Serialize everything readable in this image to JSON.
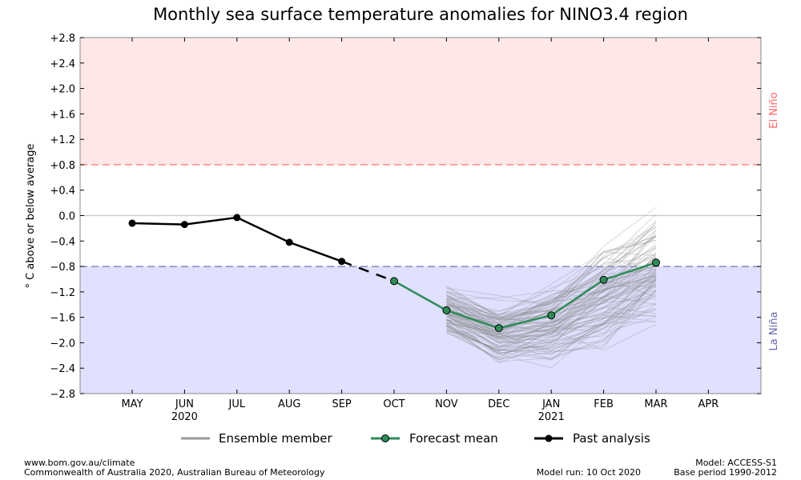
{
  "chart_data": {
    "type": "line",
    "title": "Monthly sea surface temperature anomalies for NINO3.4 region",
    "ylabel": "° C above or below average",
    "xlabel": "",
    "ylim": [
      -2.8,
      2.8
    ],
    "yticks": [
      2.8,
      2.4,
      2.0,
      1.6,
      1.2,
      0.8,
      0.4,
      0.0,
      -0.4,
      -0.8,
      -1.2,
      -1.6,
      -2.0,
      -2.4,
      -2.8
    ],
    "ytick_labels": [
      "+2.8",
      "+2.4",
      "+2.0",
      "+1.6",
      "+1.2",
      "+0.8",
      "+0.4",
      "0.0",
      "−0.4",
      "−0.8",
      "−1.2",
      "−1.6",
      "−2.0",
      "−2.4",
      "−2.8"
    ],
    "categories": [
      "MAY",
      "JUN",
      "JUL",
      "AUG",
      "SEP",
      "OCT",
      "NOV",
      "DEC",
      "JAN",
      "FEB",
      "MAR",
      "APR"
    ],
    "year_labels": [
      {
        "month": "JUN",
        "label": "2020"
      },
      {
        "month": "JAN",
        "label": "2021"
      }
    ],
    "thresholds": {
      "el_nino": 0.8,
      "la_nina": -0.8,
      "el_nino_label": "El Niño",
      "la_nina_label": "La Niña",
      "el_nino_color": "#ff6666",
      "la_nina_color": "#6666aa",
      "el_nino_fill": "#ffe7e7",
      "la_nina_fill": "#e0e0ff"
    },
    "series": [
      {
        "name": "Past analysis",
        "color": "#000000",
        "x": [
          "MAY",
          "JUN",
          "JUL",
          "AUG",
          "SEP"
        ],
        "values": [
          -0.12,
          -0.14,
          -0.03,
          -0.42,
          -0.72
        ]
      },
      {
        "name": "Forecast mean",
        "color": "#2e8b57",
        "x": [
          "OCT",
          "NOV",
          "DEC",
          "JAN",
          "FEB",
          "MAR"
        ],
        "values": [
          -1.03,
          -1.49,
          -1.77,
          -1.57,
          -1.01,
          -0.74
        ]
      }
    ],
    "ensemble": {
      "name": "Ensemble member",
      "count": 99,
      "x": [
        "NOV",
        "DEC",
        "JAN",
        "FEB",
        "MAR"
      ],
      "spread_min": [
        -1.9,
        -2.4,
        -2.4,
        -2.15,
        -1.75
      ],
      "spread_max": [
        -1.05,
        -1.2,
        -0.95,
        -0.3,
        0.2
      ]
    },
    "legend": [
      "Ensemble member",
      "Forecast mean",
      "Past analysis"
    ]
  },
  "footer": {
    "url": "www.bom.gov.au/climate",
    "copyright": "Commonwealth of Australia 2020, Australian Bureau of Meteorology",
    "model_run": "Model run: 10 Oct 2020",
    "model": "Model: ACCESS-S1",
    "base_period": "Base period 1990-2012"
  }
}
